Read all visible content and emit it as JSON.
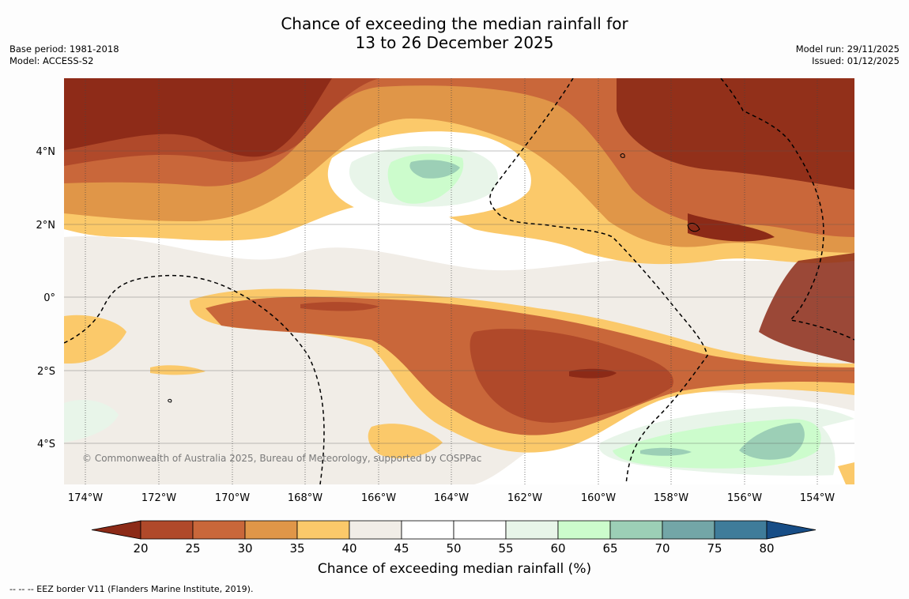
{
  "title_line1": "Chance of exceeding the median rainfall for",
  "title_line2": "13 to 26 December 2025",
  "base_period": "Base period: 1981-2018",
  "model": "Model: ACCESS-S2",
  "model_run": "Model run: 29/11/2025",
  "issued": "Issued: 01/12/2025",
  "copyright": "© Commonwealth of Australia 2025, Bureau of Meteorology, supported by COSPPac",
  "lat_labels": [
    "4°N",
    "2°N",
    "0°",
    "2°S",
    "4°S"
  ],
  "lon_labels": [
    "174°W",
    "172°W",
    "170°W",
    "168°W",
    "166°W",
    "164°W",
    "162°W",
    "160°W",
    "158°W",
    "156°W",
    "154°W"
  ],
  "colorbar": {
    "title": "Chance of exceeding median rainfall (%)",
    "ticks": [
      "20",
      "25",
      "30",
      "35",
      "40",
      "45",
      "50",
      "55",
      "60",
      "65",
      "70",
      "75",
      "80"
    ],
    "colors": [
      "#8c2a17",
      "#b0492a",
      "#c9673a",
      "#e09648",
      "#fbc96a",
      "#f1ede7",
      "#ffffff",
      "#ffffff",
      "#e8f5e9",
      "#ccfccc",
      "#9ccfb6",
      "#73a6a7",
      "#3f7c9a",
      "#174d86"
    ]
  },
  "legend_text": "--  --  -- EEZ border V11 (Flanders Marine Institute, 2019)."
}
